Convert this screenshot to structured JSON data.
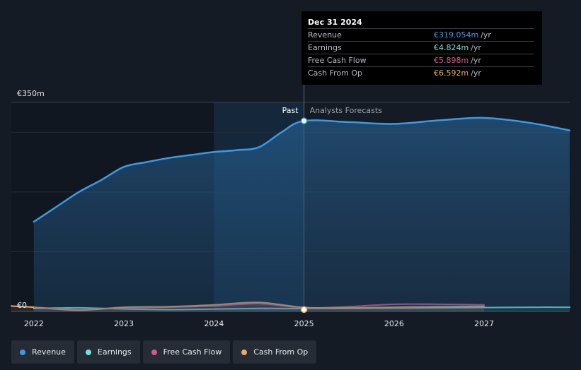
{
  "tooltip": {
    "date": "Dec 31 2024",
    "rows": [
      {
        "label": "Revenue",
        "value": "€319.054m",
        "unit": "/yr",
        "color": "#3a9ae8"
      },
      {
        "label": "Earnings",
        "value": "€4.824m",
        "unit": "/yr",
        "color": "#6ee4d6"
      },
      {
        "label": "Free Cash Flow",
        "value": "€5.898m",
        "unit": "/yr",
        "color": "#d6568e"
      },
      {
        "label": "Cash From Op",
        "value": "€6.592m",
        "unit": "/yr",
        "color": "#e8a96a"
      }
    ]
  },
  "chart_data": {
    "type": "area",
    "ylabel_top": "€350m",
    "ylabel_bottom": "€0",
    "ylim": [
      0,
      350
    ],
    "xlim": [
      2021.75,
      2027.95
    ],
    "x_ticks": [
      "2022",
      "2023",
      "2024",
      "2025",
      "2026",
      "2027"
    ],
    "past_label": "Past",
    "forecast_label": "Analysts Forecasts",
    "divider_x": 2025.0,
    "grid": true,
    "series": [
      {
        "name": "Revenue",
        "color": "#3a9ae8",
        "fill": true,
        "points": [
          [
            2022.0,
            150
          ],
          [
            2022.25,
            175
          ],
          [
            2022.5,
            200
          ],
          [
            2022.75,
            220
          ],
          [
            2023.0,
            242
          ],
          [
            2023.25,
            250
          ],
          [
            2023.5,
            257
          ],
          [
            2023.75,
            262
          ],
          [
            2024.0,
            267
          ],
          [
            2024.25,
            270
          ],
          [
            2024.5,
            275
          ],
          [
            2024.75,
            300
          ],
          [
            2025.0,
            319
          ],
          [
            2025.5,
            317
          ],
          [
            2026.0,
            314
          ],
          [
            2026.5,
            320
          ],
          [
            2027.0,
            324
          ],
          [
            2027.5,
            316
          ],
          [
            2027.95,
            303
          ]
        ]
      },
      {
        "name": "Earnings",
        "color": "#6ee4d6",
        "fill": false,
        "points": [
          [
            2022.0,
            5
          ],
          [
            2022.5,
            6
          ],
          [
            2023.0,
            4
          ],
          [
            2023.5,
            3
          ],
          [
            2024.0,
            4
          ],
          [
            2024.5,
            5
          ],
          [
            2025.0,
            4.8
          ],
          [
            2025.5,
            5
          ],
          [
            2026.0,
            5.5
          ],
          [
            2026.5,
            6
          ],
          [
            2027.0,
            6.5
          ],
          [
            2027.5,
            7
          ],
          [
            2027.95,
            7
          ]
        ]
      },
      {
        "name": "Free Cash Flow",
        "color": "#d6568e",
        "fill": false,
        "points": [
          [
            2022.0,
            7
          ],
          [
            2022.5,
            3
          ],
          [
            2023.0,
            6
          ],
          [
            2023.5,
            7
          ],
          [
            2024.0,
            9
          ],
          [
            2024.5,
            13
          ],
          [
            2025.0,
            5.9
          ],
          [
            2025.5,
            8
          ],
          [
            2026.0,
            12
          ],
          [
            2026.5,
            12
          ],
          [
            2027.0,
            11
          ]
        ]
      },
      {
        "name": "Cash From Op",
        "color": "#e8a96a",
        "fill": false,
        "points": [
          [
            2021.75,
            9
          ],
          [
            2022.0,
            7
          ],
          [
            2022.5,
            2
          ],
          [
            2023.0,
            7
          ],
          [
            2023.5,
            8
          ],
          [
            2024.0,
            11
          ],
          [
            2024.5,
            15
          ],
          [
            2025.0,
            6.6
          ],
          [
            2025.5,
            6
          ],
          [
            2026.0,
            7
          ],
          [
            2026.5,
            8
          ],
          [
            2027.0,
            8.5
          ]
        ]
      }
    ]
  },
  "legend": [
    {
      "label": "Revenue",
      "color": "#3a9ae8"
    },
    {
      "label": "Earnings",
      "color": "#6ee4d6"
    },
    {
      "label": "Free Cash Flow",
      "color": "#d6568e"
    },
    {
      "label": "Cash From Op",
      "color": "#e8a96a"
    }
  ]
}
